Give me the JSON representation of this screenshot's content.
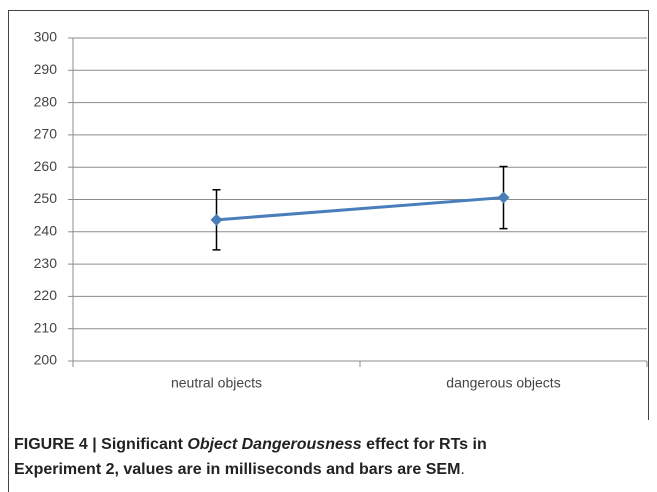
{
  "chart_data": {
    "type": "line",
    "categories": [
      "neutral objects",
      "dangerous objects"
    ],
    "series": [
      {
        "name": "RT",
        "color": "#4a7ebb",
        "values": [
          243.7,
          250.6
        ],
        "errors": [
          9.3,
          9.6
        ]
      }
    ],
    "ylim": [
      200,
      300
    ],
    "yticks": [
      200,
      210,
      220,
      230,
      240,
      250,
      260,
      270,
      280,
      290,
      300
    ],
    "grid": true,
    "caption": [
      "FIGURE 4 | Significant ",
      "Object Dangerousness",
      " effect for RTs in",
      "Experiment 2, values are in milliseconds and bars are SEM",
      "."
    ]
  }
}
